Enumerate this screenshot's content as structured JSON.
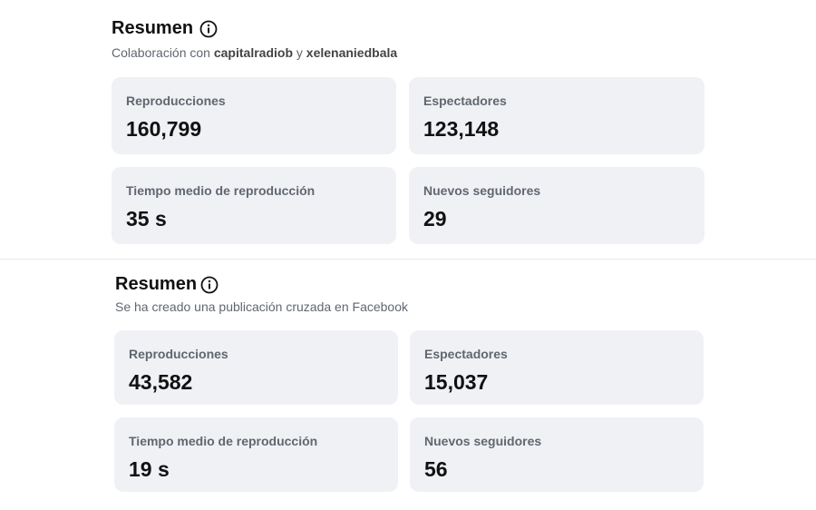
{
  "sections": [
    {
      "title": "Resumen",
      "subtitle": [
        {
          "text": "Colaboración con ",
          "bold": false
        },
        {
          "text": "capitalradiob",
          "bold": true
        },
        {
          "text": " y ",
          "bold": false
        },
        {
          "text": "xelenaniedbala",
          "bold": true
        }
      ],
      "metrics": [
        {
          "label": "Reproducciones",
          "value": "160,799"
        },
        {
          "label": "Espectadores",
          "value": "123,148"
        },
        {
          "label": "Tiempo medio de reproducción",
          "value": "35 s"
        },
        {
          "label": "Nuevos seguidores",
          "value": "29"
        }
      ]
    },
    {
      "title": "Resumen",
      "subtitle": [
        {
          "text": "Se ha creado una publicación cruzada en Facebook",
          "bold": false
        }
      ],
      "metrics": [
        {
          "label": "Reproducciones",
          "value": "43,582"
        },
        {
          "label": "Espectadores",
          "value": "15,037"
        },
        {
          "label": "Tiempo medio de reproducción",
          "value": "19 s"
        },
        {
          "label": "Nuevos seguidores",
          "value": "56"
        }
      ]
    }
  ]
}
